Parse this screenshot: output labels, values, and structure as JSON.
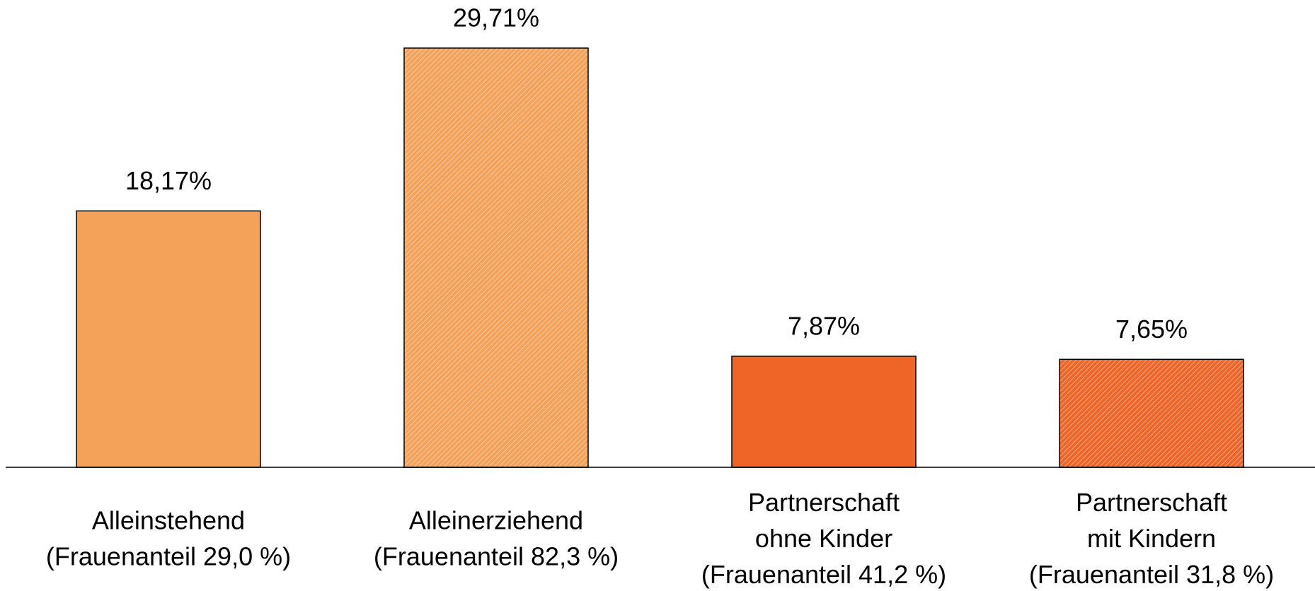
{
  "chart_data": {
    "type": "bar",
    "categories": [
      "Alleinstehend\n(Frauenanteil 29,0 %)",
      "Alleinerziehend\n(Frauenanteil 82,3 %)",
      "Partnerschaft\nohne Kinder\n(Frauenanteil 41,2 %)",
      "Partnerschaft\nmit Kindern\n(Frauenanteil 31,8 %)"
    ],
    "values": [
      18.17,
      29.71,
      7.87,
      7.65
    ],
    "value_labels": [
      "18,17%",
      "29,71%",
      "7,87%",
      "7,65%"
    ],
    "colors": [
      "#f4a15a",
      "#f4a15a",
      "#ef6527",
      "#ef6527"
    ],
    "hatched": [
      false,
      true,
      false,
      true
    ]
  }
}
